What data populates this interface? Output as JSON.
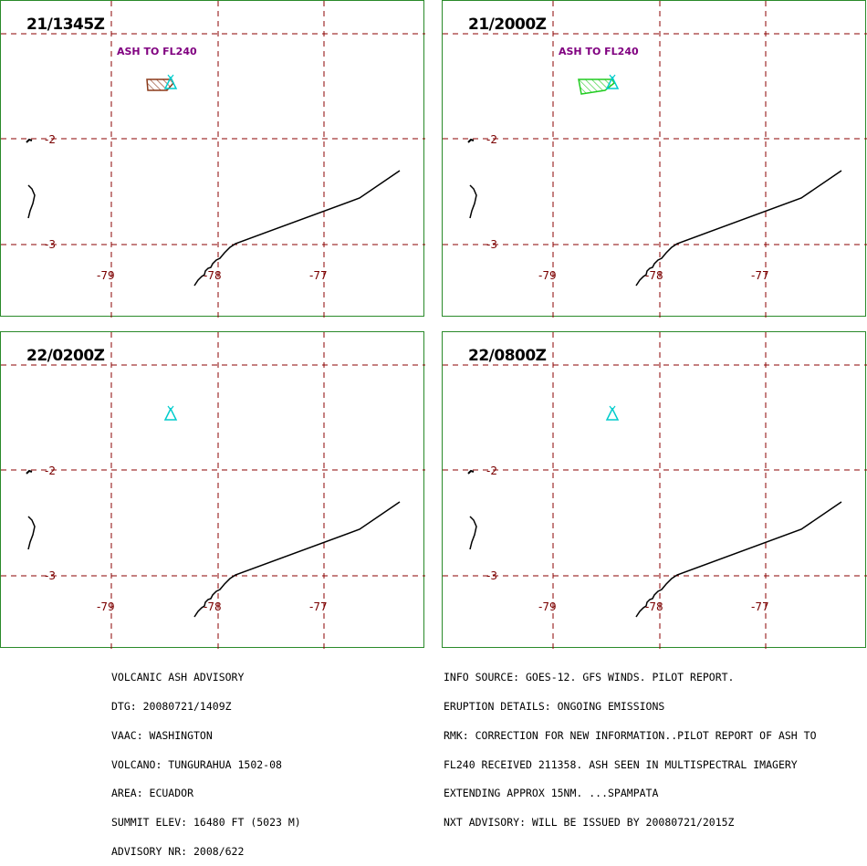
{
  "panels": [
    {
      "time": "21/1345Z",
      "ash_label": "ASH TO FL240",
      "ash_color": "#8b3a1a"
    },
    {
      "time": "21/2000Z",
      "ash_label": "ASH TO FL240",
      "ash_color": "#22cc22"
    },
    {
      "time": "22/0200Z",
      "ash_label": "",
      "ash_color": ""
    },
    {
      "time": "22/0800Z",
      "ash_label": "",
      "ash_color": ""
    }
  ],
  "latitude_labels": [
    "-2",
    "-3"
  ],
  "longitude_labels": [
    "-79",
    "-78",
    "-77"
  ],
  "colors": {
    "grid": "#8b0000",
    "border": "#2a8a2a",
    "volcano": "#00cccc",
    "label": "#800080"
  },
  "advisory_left": [
    "VOLCANIC ASH ADVISORY",
    "DTG: 20080721/1409Z",
    "VAAC: WASHINGTON",
    "VOLCANO: TUNGURAHUA 1502-08",
    "AREA: ECUADOR",
    "SUMMIT ELEV: 16480 FT (5023 M)",
    "ADVISORY NR: 2008/622"
  ],
  "advisory_right": [
    "INFO SOURCE: GOES-12. GFS WINDS. PILOT REPORT.",
    "ERUPTION DETAILS: ONGOING EMISSIONS",
    "RMK: CORRECTION FOR NEW INFORMATION..PILOT REPORT OF ASH TO",
    "FL240 RECEIVED 211358. ASH SEEN IN MULTISPECTRAL IMAGERY",
    "EXTENDING APPROX 15NM. ...SPAMPATA",
    "NXT ADVISORY: WILL BE ISSUED BY 20080721/2015Z"
  ]
}
